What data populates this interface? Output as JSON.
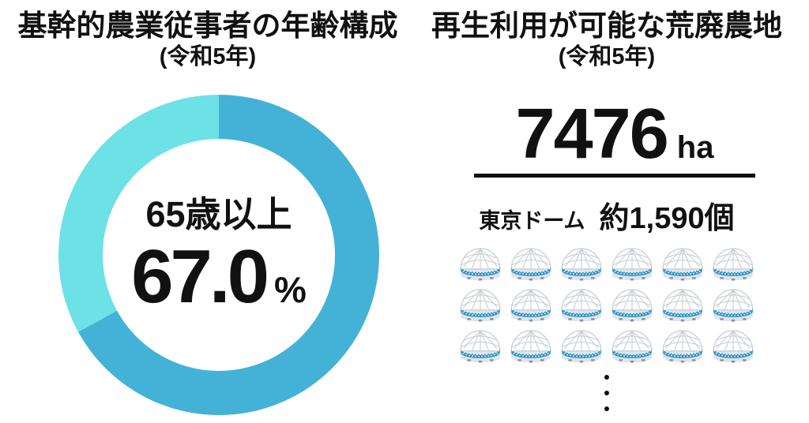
{
  "page": {
    "background": "#ffffff"
  },
  "left_chart": {
    "title": "基幹的農業従事者の年齢構成",
    "subtitle": "(令和5年)",
    "center_label": "65歳以上",
    "center_value": "67.0",
    "center_unit": "%"
  },
  "right_panel": {
    "title": "再生利用が可能な荒廃農地",
    "subtitle": "(令和5年)",
    "value": "7476",
    "unit": "ha",
    "comparison_label": "東京ドーム",
    "comparison_count": "約1,590個",
    "icon_name": "tokyo-dome-icon",
    "icon_rows": 3,
    "icon_cols": 6,
    "ellipsis_dot_count": 3
  },
  "colors": {
    "donut_primary": "#44b2d6",
    "donut_secondary": "#6ce1e6",
    "dome_band_blue": "#2d93c8",
    "text": "#111111"
  },
  "chart_data": [
    {
      "type": "pie",
      "subtype": "donut",
      "title": "基幹的農業従事者の年齢構成 (令和5年)",
      "slices": [
        {
          "label": "65歳以上",
          "value": 67.0,
          "color": "#44b2d6"
        },
        {
          "label": "",
          "value": 33.0,
          "color": "#6ce1e6"
        }
      ],
      "center_text": [
        "65歳以上",
        "67.0 %"
      ],
      "start_angle_deg": 0,
      "direction": "clockwise",
      "legend": false
    },
    {
      "type": "table",
      "title": "再生利用が可能な荒廃農地 (令和5年)",
      "rows": [
        [
          "再生利用が可能な荒廃農地",
          "7476 ha"
        ],
        [
          "東京ドーム",
          "約1,590個"
        ]
      ],
      "pictogram": {
        "icon": "tokyo-dome",
        "icons_shown": 18,
        "rows": 3,
        "cols": 6,
        "truncated_ellipsis": true
      }
    }
  ]
}
